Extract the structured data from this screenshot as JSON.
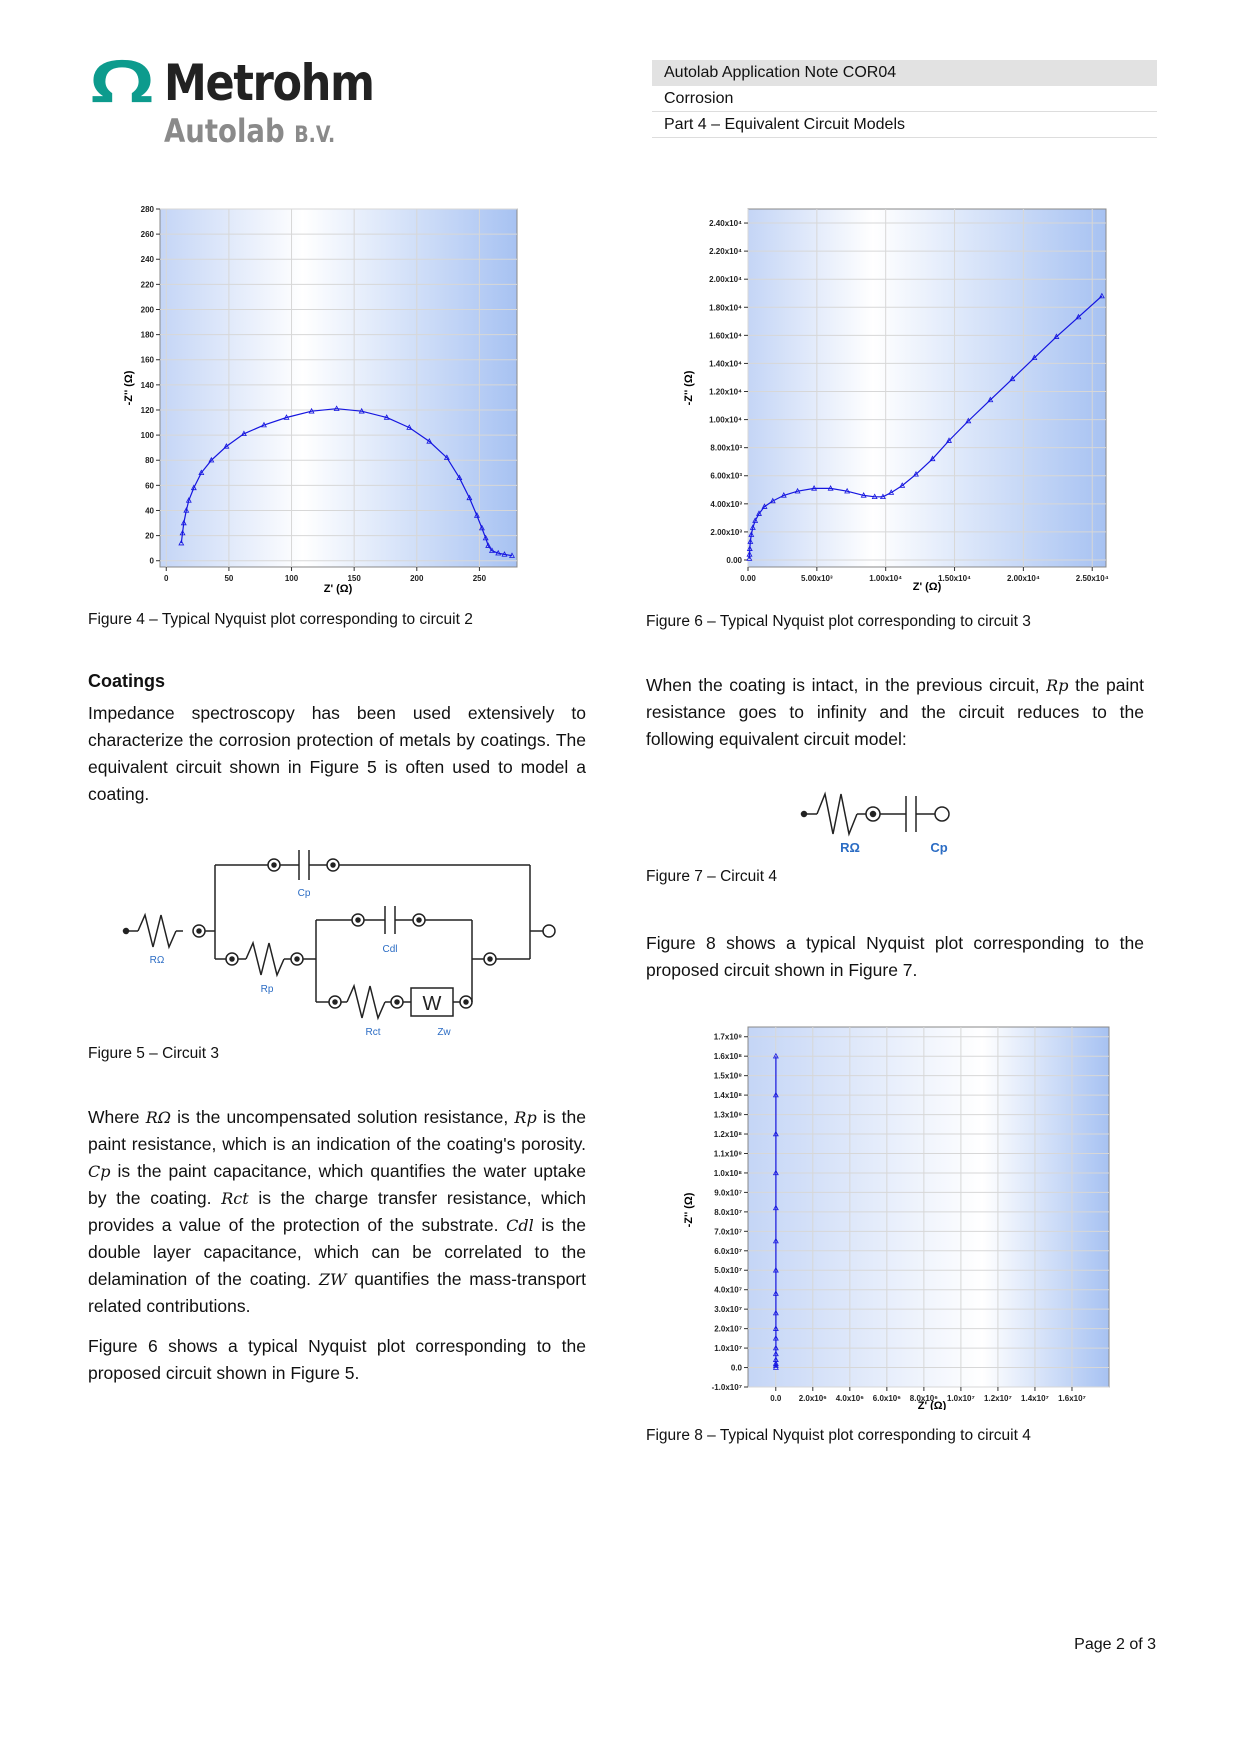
{
  "header": {
    "logo": {
      "name": "Metrohm",
      "sub": "Autolab",
      "sub_suffix": "B.V."
    },
    "lines": [
      "Autolab Application Note COR04",
      "Corrosion",
      "Part 4 – Equivalent Circuit Models"
    ]
  },
  "fig4": {
    "caption": "Figure 4 – Typical Nyquist plot corresponding to circuit 2",
    "xlabel": "Z' (Ω)",
    "ylabel": "-Z'' (Ω)"
  },
  "fig6": {
    "caption": "Figure 6 – Typical Nyquist plot corresponding to circuit 3",
    "xlabel": "Z' (Ω)",
    "ylabel": "-Z'' (Ω)"
  },
  "fig8": {
    "caption": "Figure 8 – Typical Nyquist plot corresponding to circuit 4",
    "xlabel": "Z' (Ω)",
    "ylabel": "-Z'' (Ω)"
  },
  "fig5": {
    "caption": "Figure 5 – Circuit 3",
    "labels": {
      "cp": "Cp",
      "cdl": "Cdl",
      "ro": "RΩ",
      "rp": "Rp",
      "rct": "Rct",
      "zw": "Zw",
      "w": "W"
    }
  },
  "fig7": {
    "caption": "Figure 7 – Circuit 4",
    "labels": {
      "ro": "RΩ",
      "cp": "Cp"
    }
  },
  "left_column": {
    "section_title": "Coatings",
    "p1": "Impedance spectroscopy has been used extensively to characterize the corrosion protection of metals by coatings. The equivalent circuit shown in Figure 5 is often used to model a coating.",
    "p2": {
      "t1": "Where ",
      "v1": "RΩ",
      "t2": " is the uncompensated solution resistance, ",
      "v2": "Rp",
      "t3": " is the paint resistance, which is an indication of the coating's porosity. ",
      "v3": "Cp",
      "t4": " is the paint capacitance, which quantifies the water uptake by the coating. ",
      "v4": "Rct",
      "t5": " is the charge transfer resistance, which provides a value of the protection of the substrate. ",
      "v5": "Cdl",
      "t6": " is the double layer capacitance, which can be correlated to the delamination of the coating. ",
      "v6": "ZW",
      "t7": " quantifies the mass-transport related contributions."
    },
    "p3": "Figure 6 shows a typical Nyquist plot corresponding to the proposed circuit shown in Figure 5."
  },
  "right_column": {
    "p1": {
      "t1": "When the coating is intact, in the previous circuit, ",
      "v1": "Rp",
      "t2": " the paint resistance goes to infinity and the circuit reduces to the following equivalent circuit model:"
    },
    "p2": "Figure 8 shows a typical Nyquist plot corresponding to the proposed circuit shown in Figure 7."
  },
  "footer": {
    "page": "Page 2 of 3"
  },
  "colors": {
    "logo_teal": "#0d9b8d",
    "plot_line": "#1515e0",
    "circuit_label": "#2b6cc4"
  },
  "chart_data": [
    {
      "type": "line",
      "id": "fig4",
      "xlim": [
        -5,
        280
      ],
      "ylim": [
        -5,
        280
      ],
      "xticks": [
        0,
        50,
        100,
        150,
        200,
        250
      ],
      "xtick_labels": [
        "0",
        "50",
        "100",
        "150",
        "200",
        "250"
      ],
      "yticks": [
        0,
        20,
        40,
        60,
        80,
        100,
        120,
        140,
        160,
        180,
        200,
        220,
        240,
        260,
        280
      ],
      "ytick_labels": [
        "0",
        "20",
        "40",
        "60",
        "80",
        "100",
        "120",
        "140",
        "160",
        "180",
        "200",
        "220",
        "240",
        "260",
        "280"
      ],
      "x": [
        12,
        13,
        14,
        16,
        18,
        22,
        28,
        36,
        48,
        62,
        78,
        96,
        116,
        136,
        156,
        176,
        194,
        210,
        224,
        234,
        242,
        248,
        252,
        255,
        257,
        260,
        265,
        270,
        276
      ],
      "y": [
        14,
        22,
        30,
        40,
        48,
        58,
        70,
        80,
        91,
        101,
        108,
        114,
        119,
        121,
        119,
        114,
        106,
        95,
        82,
        66,
        50,
        36,
        26,
        18,
        12,
        8,
        6,
        5,
        4
      ],
      "grid": true
    },
    {
      "type": "line",
      "id": "fig6",
      "xlim": [
        0,
        26000
      ],
      "ylim": [
        -500,
        25000
      ],
      "xticks": [
        0,
        5000,
        10000,
        15000,
        20000,
        25000
      ],
      "xtick_labels": [
        "0.00",
        "5.00x10³",
        "1.00x10⁴",
        "1.50x10⁴",
        "2.00x10⁴",
        "2.50x10⁴"
      ],
      "yticks": [
        0,
        2000,
        4000,
        6000,
        8000,
        10000,
        12000,
        14000,
        16000,
        18000,
        20000,
        22000,
        24000
      ],
      "ytick_labels": [
        "0.00",
        "2.00x10³",
        "4.00x10³",
        "6.00x10³",
        "8.00x10³",
        "1.00x10⁴",
        "1.20x10⁴",
        "1.40x10⁴",
        "1.60x10⁴",
        "1.80x10⁴",
        "2.00x10⁴",
        "2.20x10⁴",
        "2.40x10⁴"
      ],
      "x": [
        100,
        110,
        130,
        170,
        240,
        350,
        520,
        800,
        1200,
        1800,
        2600,
        3600,
        4800,
        6000,
        7200,
        8400,
        9200,
        9800,
        10400,
        11200,
        12200,
        13400,
        14600,
        16000,
        17600,
        19200,
        20800,
        22400,
        24000,
        25700
      ],
      "y": [
        100,
        400,
        800,
        1300,
        1800,
        2300,
        2800,
        3300,
        3800,
        4200,
        4600,
        4900,
        5100,
        5100,
        4900,
        4600,
        4500,
        4500,
        4800,
        5300,
        6100,
        7200,
        8500,
        9900,
        11400,
        12900,
        14400,
        15900,
        17300,
        18800
      ],
      "grid": true
    },
    {
      "type": "line",
      "id": "fig8",
      "xlim": [
        -1500000.0,
        18000000.0
      ],
      "ylim": [
        -10000000.0,
        175000000.0
      ],
      "xticks": [
        0,
        2000000.0,
        4000000.0,
        6000000.0,
        8000000.0,
        10000000.0,
        12000000.0,
        14000000.0,
        16000000.0
      ],
      "xtick_labels": [
        "0.0",
        "2.0x10⁶",
        "4.0x10⁶",
        "6.0x10⁶",
        "8.0x10⁶",
        "1.0x10⁷",
        "1.2x10⁷",
        "1.4x10⁷",
        "1.6x10⁷"
      ],
      "yticks": [
        -10000000.0,
        0,
        10000000.0,
        20000000.0,
        30000000.0,
        40000000.0,
        50000000.0,
        60000000.0,
        70000000.0,
        80000000.0,
        90000000.0,
        100000000.0,
        110000000.0,
        120000000.0,
        130000000.0,
        140000000.0,
        150000000.0,
        160000000.0,
        170000000.0
      ],
      "ytick_labels": [
        "-1.0x10⁷",
        "0.0",
        "1.0x10⁷",
        "2.0x10⁷",
        "3.0x10⁷",
        "4.0x10⁷",
        "5.0x10⁷",
        "6.0x10⁷",
        "7.0x10⁷",
        "8.0x10⁷",
        "9.0x10⁷",
        "1.0x10⁸",
        "1.1x10⁸",
        "1.2x10⁸",
        "1.3x10⁸",
        "1.4x10⁸",
        "1.5x10⁸",
        "1.6x10⁸",
        "1.7x10⁸"
      ],
      "x": [
        5000,
        5000,
        5000,
        5000,
        5000,
        5000,
        5000,
        5000,
        5000,
        5000,
        5000,
        5000,
        5000,
        5000,
        5000,
        5000,
        5000
      ],
      "y": [
        0,
        1000000.0,
        2000000.0,
        4000000.0,
        7000000.0,
        10000000.0,
        15000000.0,
        20000000.0,
        28000000.0,
        38000000.0,
        50000000.0,
        65000000.0,
        82000000.0,
        100000000.0,
        120000000.0,
        140000000.0,
        160000000.0
      ],
      "grid": true
    }
  ]
}
